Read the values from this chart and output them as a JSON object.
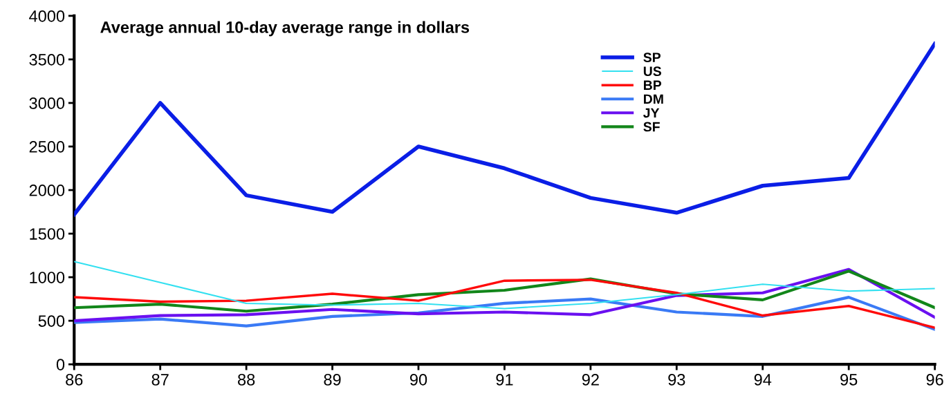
{
  "chart_data": {
    "type": "line",
    "title": "Average annual 10-day average range in dollars",
    "categories": [
      "86",
      "87",
      "88",
      "89",
      "90",
      "91",
      "92",
      "93",
      "94",
      "95",
      "96"
    ],
    "series": [
      {
        "name": "SP",
        "color": "#0a1ee6",
        "values": [
          1720,
          3000,
          1940,
          1750,
          2500,
          2250,
          1910,
          1740,
          2050,
          2140,
          3680
        ]
      },
      {
        "name": "US",
        "color": "#33e0f0",
        "values": [
          1180,
          940,
          700,
          680,
          700,
          640,
          700,
          800,
          920,
          840,
          870
        ]
      },
      {
        "name": "BP",
        "color": "#ff0a0a",
        "values": [
          770,
          720,
          730,
          810,
          730,
          960,
          970,
          820,
          560,
          670,
          420
        ]
      },
      {
        "name": "DM",
        "color": "#3a7af5",
        "values": [
          480,
          520,
          440,
          550,
          590,
          700,
          750,
          600,
          550,
          770,
          400
        ]
      },
      {
        "name": "JY",
        "color": "#6a10f0",
        "values": [
          500,
          560,
          570,
          630,
          580,
          600,
          570,
          790,
          820,
          1090,
          540
        ]
      },
      {
        "name": "SF",
        "color": "#12861a",
        "values": [
          650,
          690,
          610,
          690,
          800,
          850,
          980,
          810,
          740,
          1070,
          650
        ]
      }
    ],
    "ylim": [
      0,
      4000
    ],
    "yticks": [
      0,
      500,
      1000,
      1500,
      2000,
      2500,
      3000,
      3500,
      4000
    ],
    "grid": false,
    "legend": "top right",
    "marker": "none",
    "line_style": "solid"
  }
}
